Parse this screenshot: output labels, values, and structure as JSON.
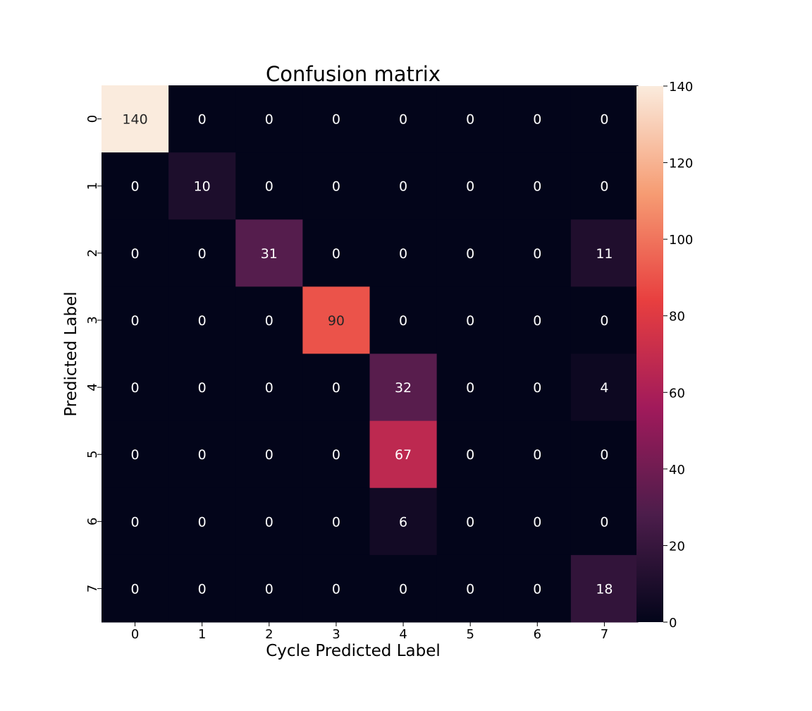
{
  "chart_data": {
    "type": "heatmap",
    "title": "Confusion matrix",
    "xlabel": "Cycle Predicted Label",
    "ylabel": "Predicted Label",
    "x_categories": [
      "0",
      "1",
      "2",
      "3",
      "4",
      "5",
      "6",
      "7"
    ],
    "y_categories": [
      "0",
      "1",
      "2",
      "3",
      "4",
      "5",
      "6",
      "7"
    ],
    "values": [
      [
        140,
        0,
        0,
        0,
        0,
        0,
        0,
        0
      ],
      [
        0,
        10,
        0,
        0,
        0,
        0,
        0,
        0
      ],
      [
        0,
        0,
        31,
        0,
        0,
        0,
        0,
        11
      ],
      [
        0,
        0,
        0,
        90,
        0,
        0,
        0,
        0
      ],
      [
        0,
        0,
        0,
        0,
        32,
        0,
        0,
        4
      ],
      [
        0,
        0,
        0,
        0,
        67,
        0,
        0,
        0
      ],
      [
        0,
        0,
        0,
        0,
        6,
        0,
        0,
        0
      ],
      [
        0,
        0,
        0,
        0,
        0,
        0,
        0,
        18
      ]
    ],
    "colorbar": {
      "range": [
        0,
        140
      ],
      "ticks": [
        0,
        20,
        40,
        60,
        80,
        100,
        120,
        140
      ],
      "colormap": "rocket",
      "colors": [
        "#03051a",
        "#4c1d4b",
        "#a11a5b",
        "#e83f3f",
        "#f69c73",
        "#faebdd"
      ]
    },
    "annotations": true,
    "grid": false
  }
}
